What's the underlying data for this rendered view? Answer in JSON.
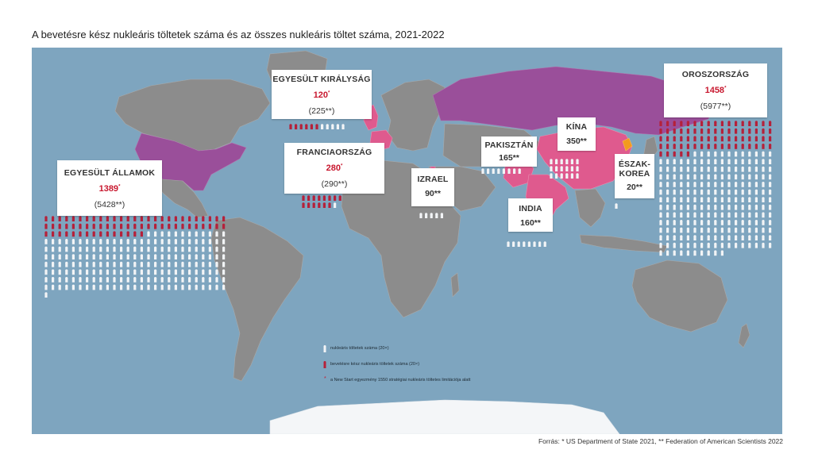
{
  "title": "A bevetésre kész nukleáris töltetek száma és az összes nukleáris töltet száma, 2021-2022",
  "colors": {
    "ocean": "#7ea5bf",
    "land": "#8c8c8c",
    "purple": "#9a4f9a",
    "pink": "#df5a8e",
    "orange": "#f39a1e",
    "deployed": "#b5213a",
    "stockpile": "#f2f4f6",
    "number_red": "#c8172e"
  },
  "icon_unit": 20,
  "countries": [
    {
      "key": "usa",
      "name": "EGYESÜLT ÁLLAMOK",
      "deployed": "1389",
      "deployed_mark": "*",
      "total": "(5428**)",
      "deployed_value": 1389,
      "total_value": 5428,
      "fill": "purple"
    },
    {
      "key": "russia",
      "name": "OROSZORSZÁG",
      "deployed": "1458",
      "deployed_mark": "*",
      "total": "(5977**)",
      "deployed_value": 1458,
      "total_value": 5977,
      "fill": "purple"
    },
    {
      "key": "uk",
      "name": "EGYESÜLT KIRÁLYSÁG",
      "deployed": "120",
      "deployed_mark": "*",
      "total": "(225**)",
      "deployed_value": 120,
      "total_value": 225,
      "fill": "pink"
    },
    {
      "key": "france",
      "name": "FRANCIAORSZÁG",
      "deployed": "280",
      "deployed_mark": "*",
      "total": "(290**)",
      "deployed_value": 280,
      "total_value": 290,
      "fill": "pink"
    },
    {
      "key": "israel",
      "name": "IZRAEL",
      "total": "90**",
      "total_value": 90,
      "fill": "pink"
    },
    {
      "key": "pakistan",
      "name": "PAKISZTÁN",
      "total": "165**",
      "total_value": 165,
      "fill": "pink"
    },
    {
      "key": "china",
      "name": "KÍNA",
      "total": "350**",
      "total_value": 350,
      "fill": "pink"
    },
    {
      "key": "india",
      "name": "INDIA",
      "total": "160**",
      "total_value": 160,
      "fill": "pink"
    },
    {
      "key": "nkorea",
      "name": "ÉSZAK-KOREA",
      "name_line1": "ÉSZAK-",
      "name_line2": "KOREA",
      "total": "20**",
      "total_value": 20,
      "fill": "orange"
    }
  ],
  "legend": {
    "stockpile": "nukleáris töltetek száma (20×)",
    "deployed": "bevetésre kész nukleáris töltetek száma (20×)",
    "note": "a New Start egyezmény 1550 stratégiai nukleáris töltetes limitációja alatt",
    "note_mark": "*"
  },
  "source": "Forrás: * US Department of State 2021, ** Federation of American Scientists 2022"
}
